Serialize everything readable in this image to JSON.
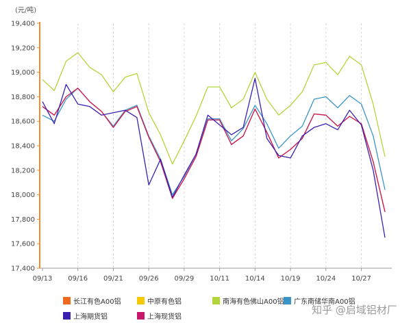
{
  "chart_data": {
    "type": "line",
    "unit_label": "(元/吨)",
    "xlabel": "",
    "ylabel": "",
    "ylim": [
      17400,
      19400
    ],
    "y_ticks": [
      "17,400",
      "17,600",
      "17,800",
      "18,000",
      "18,200",
      "18,400",
      "18,600",
      "18,800",
      "19,000",
      "19,200",
      "19,400"
    ],
    "x_tick_labels": [
      "09/13",
      "09/16",
      "09/21",
      "09/26",
      "09/29",
      "10/11",
      "10/14",
      "10/19",
      "10/24",
      "10/27"
    ],
    "x_tick_positions": [
      0,
      3,
      6,
      9,
      12,
      15,
      18,
      21,
      24,
      27
    ],
    "point_count": 30,
    "grid": "vertical dashed",
    "legend_position": "bottom",
    "series": [
      {
        "name": "长江有色A00铝",
        "color": "#ef6a1f",
        "values": [
          18720,
          18650,
          18800,
          18870,
          18760,
          18680,
          18550,
          18680,
          18720,
          18470,
          18270,
          17970,
          18130,
          18310,
          18610,
          18610,
          18410,
          18480,
          18700,
          18510,
          18300,
          18370,
          18460,
          18660,
          18650,
          18560,
          18640,
          18580,
          18270,
          17860
        ]
      },
      {
        "name": "中原有色铝",
        "color": "#f5c800",
        "values": [
          18720,
          18650,
          18800,
          18870,
          18760,
          18680,
          18550,
          18680,
          18720,
          18470,
          18270,
          17970,
          18130,
          18310,
          18610,
          18610,
          18410,
          18480,
          18700,
          18510,
          18300,
          18370,
          18460,
          18660,
          18650,
          18560,
          18640,
          18580,
          18270,
          17860
        ]
      },
      {
        "name": "南海有色佛山A00铝",
        "color": "#b2d63a",
        "values": [
          18940,
          18850,
          19090,
          19160,
          19040,
          18980,
          18840,
          18960,
          18990,
          18670,
          18490,
          18250,
          18440,
          18640,
          18880,
          18880,
          18710,
          18780,
          19000,
          18780,
          18650,
          18730,
          18840,
          19060,
          19080,
          18980,
          19130,
          19060,
          18740,
          18310
        ]
      },
      {
        "name": "广东南储华南A00铝",
        "color": "#3a94c8",
        "values": [
          18650,
          18600,
          18780,
          18870,
          18760,
          18680,
          18560,
          18690,
          18730,
          18480,
          18290,
          18000,
          18150,
          18330,
          18620,
          18620,
          18440,
          18540,
          18730,
          18580,
          18380,
          18480,
          18560,
          18780,
          18800,
          18710,
          18810,
          18740,
          18480,
          18040
        ]
      },
      {
        "name": "上海期货铝",
        "color": "#3a1fb0",
        "values": [
          18760,
          18580,
          18900,
          18740,
          18720,
          18650,
          18670,
          18690,
          18630,
          18080,
          18290,
          17980,
          18160,
          18330,
          18650,
          18570,
          18490,
          18550,
          18950,
          18460,
          18320,
          18300,
          18480,
          18550,
          18580,
          18530,
          18690,
          18570,
          18200,
          17650
        ]
      },
      {
        "name": "上海现货铝",
        "color": "#c8186a",
        "values": [
          18720,
          18650,
          18800,
          18870,
          18760,
          18680,
          18550,
          18680,
          18720,
          18470,
          18270,
          17970,
          18130,
          18310,
          18610,
          18610,
          18410,
          18480,
          18700,
          18510,
          18300,
          18370,
          18460,
          18660,
          18650,
          18560,
          18640,
          18580,
          18270,
          17860
        ]
      }
    ],
    "draw_order": [
      2,
      3,
      0,
      1,
      5,
      4
    ]
  },
  "watermark": "知乎 @启域铝材厂"
}
